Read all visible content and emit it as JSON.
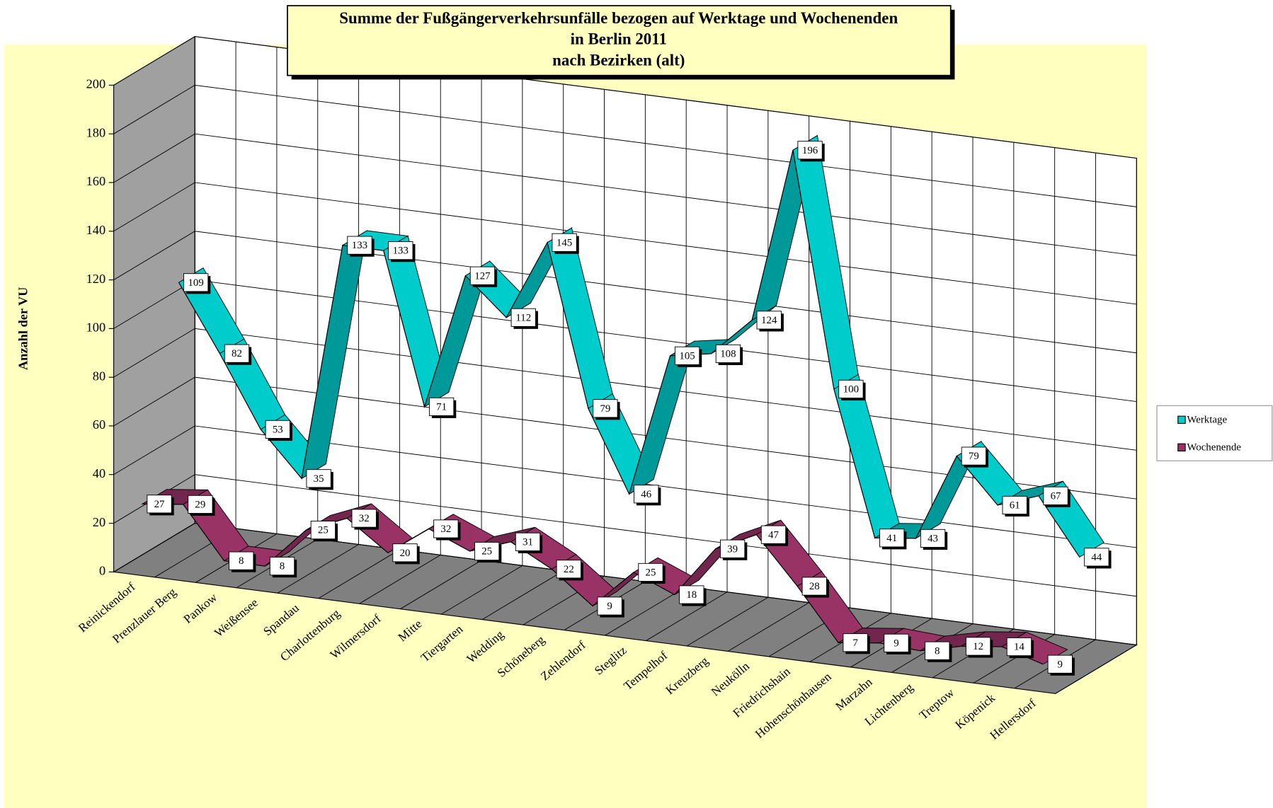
{
  "chart_data": {
    "type": "line3d",
    "title": [
      "Summe der Fußgängerverkehrsunfälle bezogen auf Werktage und Wochenenden",
      "in Berlin     2011",
      "nach Bezirken (alt)"
    ],
    "y_label": "Anzahl der VU",
    "categories": [
      "Reinickendorf",
      "Prenzlauer Berg",
      "Pankow",
      "Weißensee",
      "Spandau",
      "Charlottenburg",
      "Wilmersdorf",
      "Mitte",
      "Tiergarten",
      "Wedding",
      "Schöneberg",
      "Zehlendorf",
      "Steglitz",
      "Tempelhof",
      "Kreuzberg",
      "Neukölln",
      "Friedrichshain",
      "Hohenschönhausen",
      "Marzahn",
      "Lichtenberg",
      "Treptow",
      "Köpenick",
      "Hellersdorf"
    ],
    "series": [
      {
        "name": "Werktage",
        "color": "#00cccc",
        "values": [
          109,
          82,
          53,
          35,
          133,
          133,
          71,
          127,
          112,
          145,
          79,
          46,
          105,
          108,
          124,
          196,
          100,
          41,
          43,
          79,
          61,
          67,
          44
        ]
      },
      {
        "name": "Wochenende",
        "color": "#993366",
        "values": [
          27,
          29,
          8,
          8,
          25,
          32,
          20,
          32,
          25,
          31,
          22,
          9,
          25,
          18,
          39,
          47,
          28,
          7,
          9,
          8,
          12,
          14,
          9
        ]
      }
    ],
    "ylim": [
      0,
      200
    ],
    "yticks": [
      0,
      20,
      40,
      60,
      80,
      100,
      120,
      140,
      160,
      180,
      200
    ],
    "grid": true,
    "legend": "right"
  }
}
